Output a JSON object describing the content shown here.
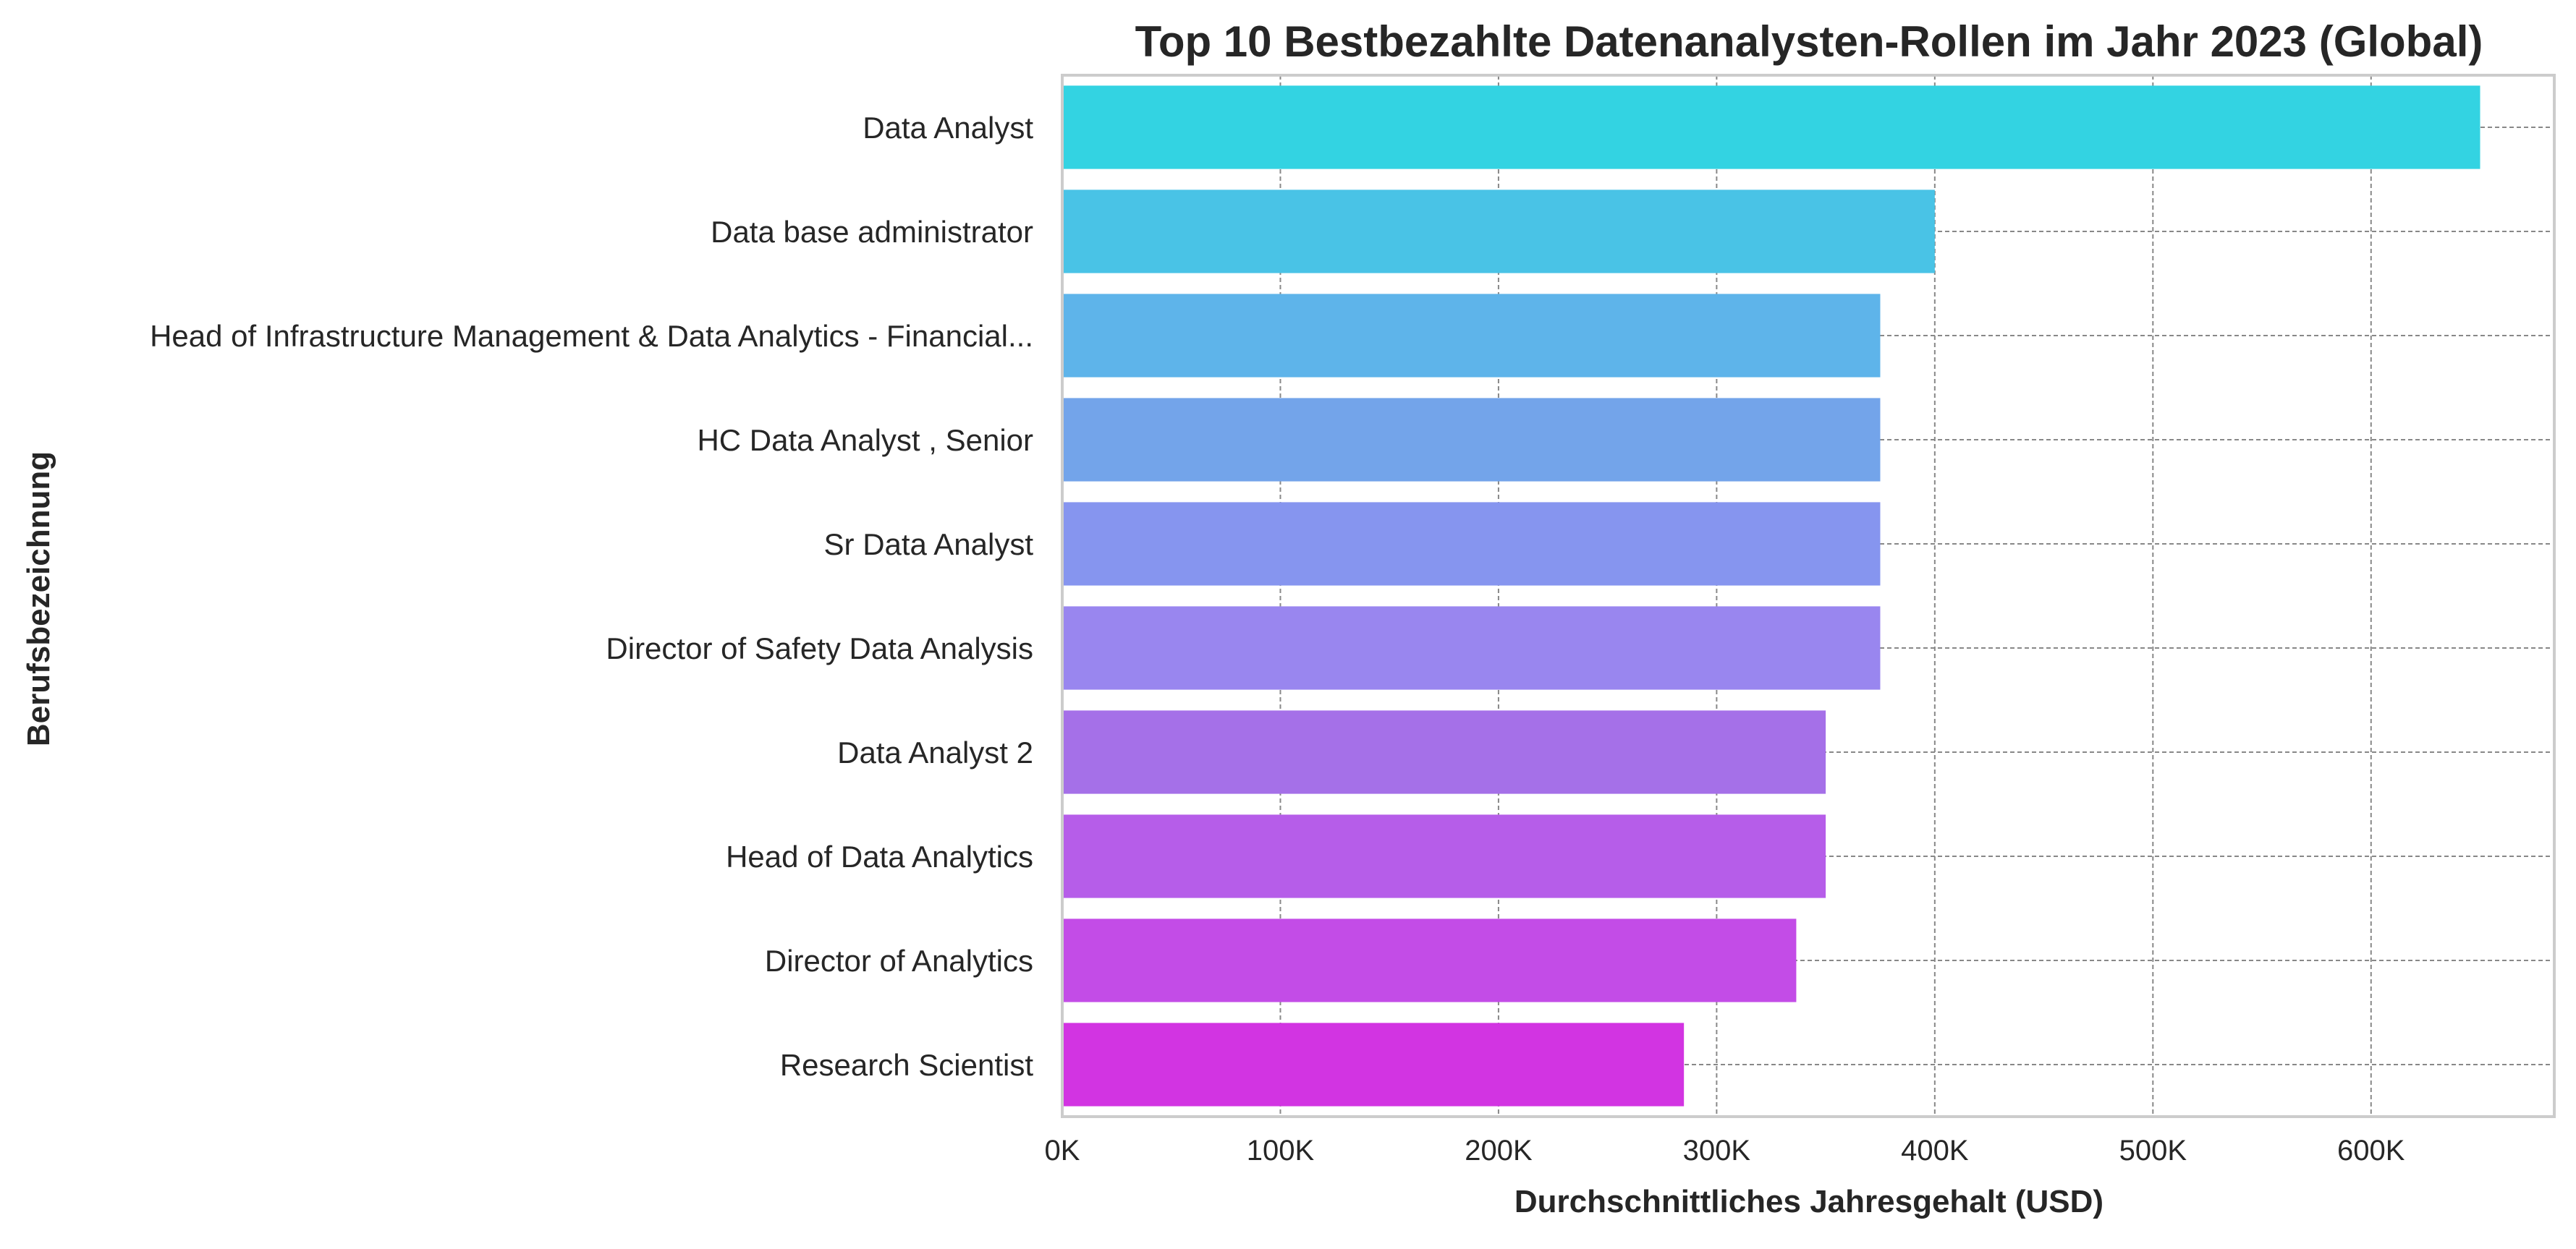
{
  "chart_data": {
    "type": "bar",
    "orientation": "horizontal",
    "title": "Top 10 Bestbezahlte Datenanalysten-Rollen im Jahr 2023 (Global)",
    "xlabel": "Durchschnittliches Jahresgehalt (USD)",
    "ylabel": "Berufsbezeichnung",
    "categories": [
      "Data Analyst",
      "Data base administrator",
      "Head of Infrastructure Management & Data Analytics - Financial...",
      "HC Data Analyst , Senior",
      "Sr Data Analyst",
      "Director of Safety Data Analysis",
      "Data Analyst 2",
      "Head of Data Analytics",
      "Director of Analytics",
      "Research Scientist"
    ],
    "values": [
      650000,
      400000,
      375000,
      375000,
      375000,
      375000,
      350000,
      350000,
      336500,
      285000
    ],
    "xlim": [
      0,
      684000
    ],
    "xticks": [
      0,
      100000,
      200000,
      300000,
      400000,
      500000,
      600000
    ],
    "xtick_labels": [
      "0K",
      "100K",
      "200K",
      "300K",
      "400K",
      "500K",
      "600K"
    ],
    "grid": true,
    "legend": "none",
    "colors": [
      "#33d3e2",
      "#49c3e6",
      "#5eb4ea",
      "#73a4ea",
      "#8695ef",
      "#9986ef",
      "#a570e8",
      "#b65de9",
      "#c34ce7",
      "#d234e2"
    ],
    "spine_color": "#cccccc",
    "grid_color": "#888888",
    "text_color": "#262626"
  }
}
